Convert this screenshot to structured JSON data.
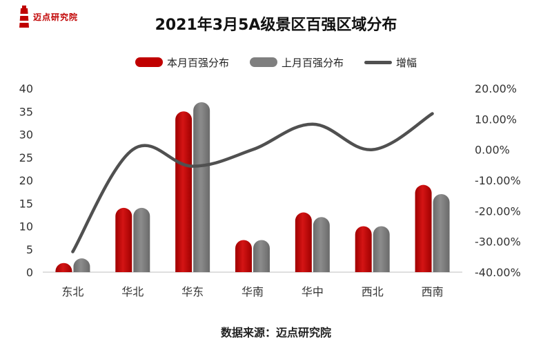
{
  "logo": {
    "text": "迈点研究院",
    "brand_color": "#c00000"
  },
  "source_label": "数据来源：迈点研究院",
  "chart_data": {
    "type": "bar",
    "title": "2021年3月5A级景区百强区域分布",
    "categories": [
      "东北",
      "华北",
      "华东",
      "华南",
      "华中",
      "西北",
      "西南"
    ],
    "series": [
      {
        "name": "本月百强分布",
        "type": "bar",
        "axis": "left",
        "color": "#c00000",
        "values": [
          2,
          14,
          35,
          7,
          13,
          10,
          19
        ]
      },
      {
        "name": "上月百强分布",
        "type": "bar",
        "axis": "left",
        "color": "#7f7f7f",
        "values": [
          3,
          14,
          37,
          7,
          12,
          10,
          17
        ]
      },
      {
        "name": "增幅",
        "type": "line",
        "axis": "right",
        "color": "#505050",
        "values": [
          -33.33,
          0.0,
          -5.41,
          0.0,
          8.33,
          0.0,
          11.76
        ]
      }
    ],
    "y_left": {
      "min": 0,
      "max": 40,
      "ticks": [
        0,
        5,
        10,
        15,
        20,
        25,
        30,
        35,
        40
      ]
    },
    "y_right": {
      "min": -40,
      "max": 20,
      "ticks": [
        -40,
        -30,
        -20,
        -10,
        0,
        10,
        20
      ],
      "tick_labels": [
        "-40.00%",
        "-30.00%",
        "-20.00%",
        "-10.00%",
        "0.00%",
        "10.00%",
        "20.00%"
      ]
    },
    "grid": false,
    "legend_position": "top"
  }
}
